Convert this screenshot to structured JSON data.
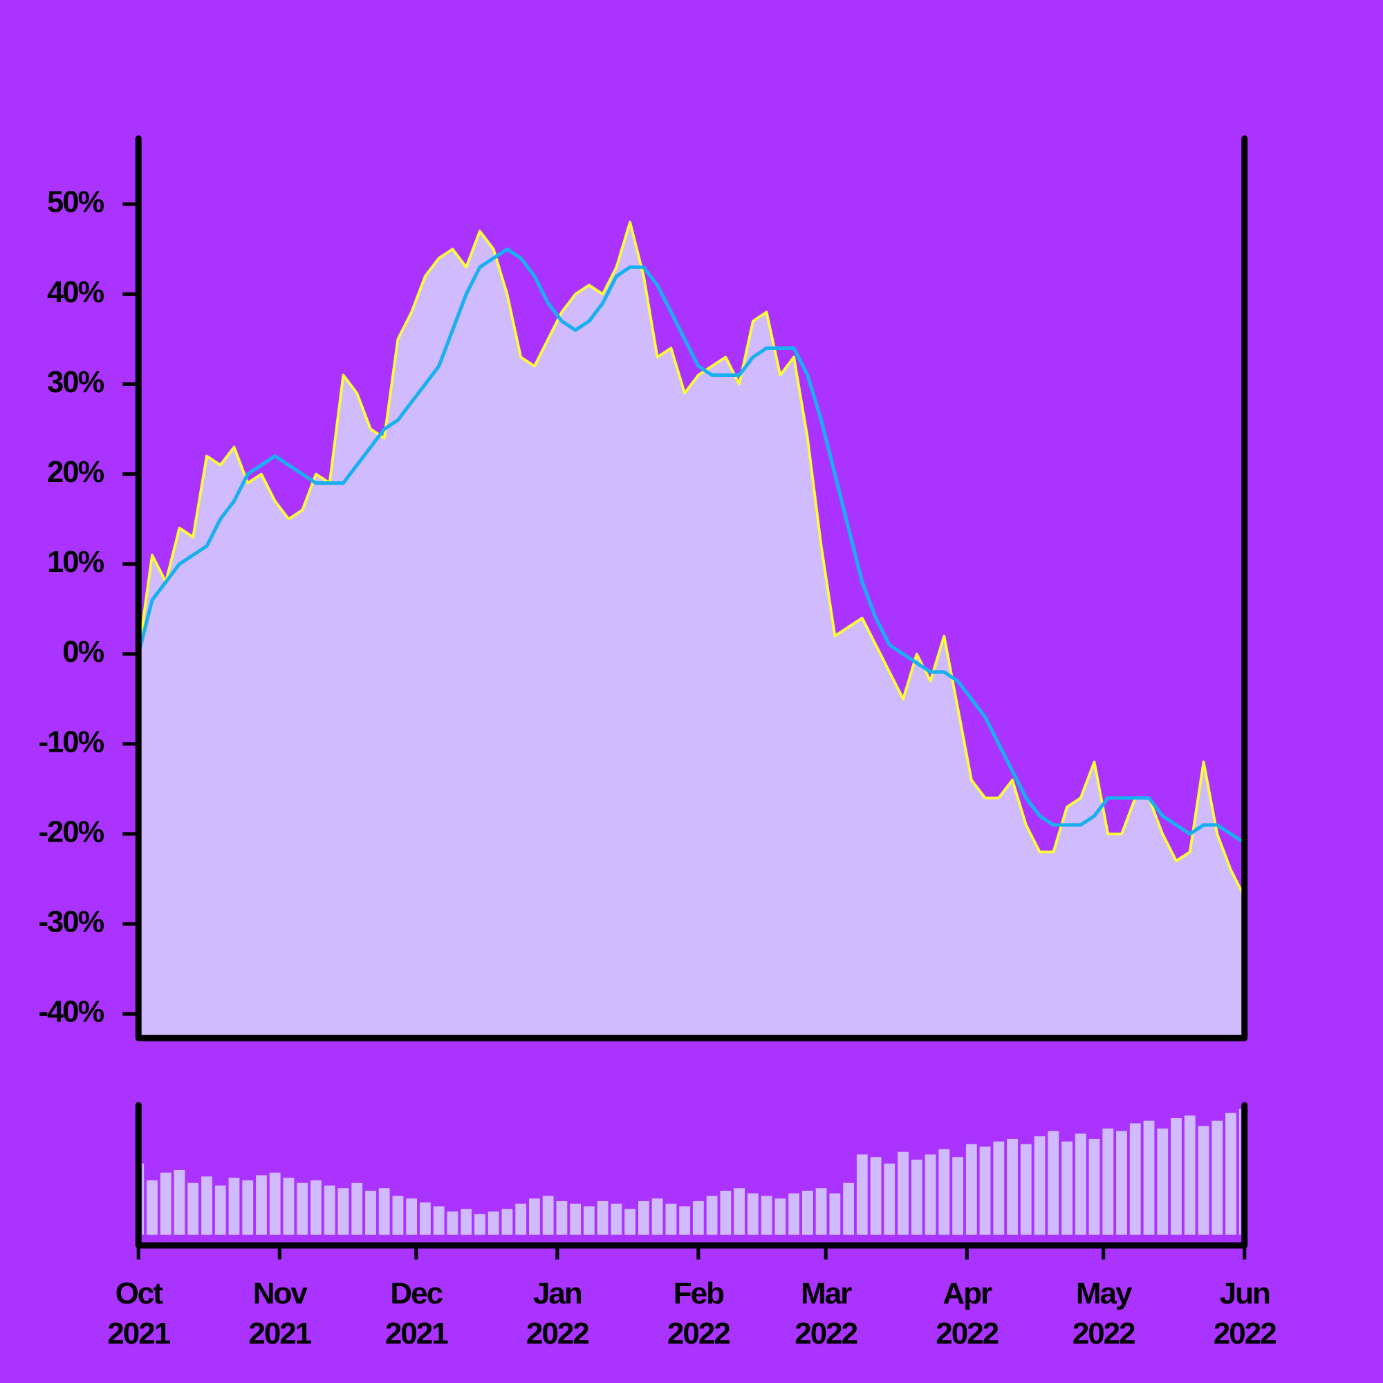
{
  "chart_data": [
    {
      "type": "area",
      "x": [
        0,
        3,
        6,
        9,
        12,
        15,
        18,
        21,
        24,
        27,
        30,
        33,
        36,
        39,
        42,
        45,
        48,
        51,
        54,
        57,
        60,
        63,
        66,
        69,
        72,
        75,
        78,
        81,
        84,
        87,
        90,
        93,
        96,
        99,
        102,
        105,
        108,
        111,
        114,
        117,
        120,
        123,
        126,
        129,
        132,
        135,
        138,
        141,
        144,
        147,
        150,
        153,
        156,
        159,
        162,
        165,
        168,
        171,
        174,
        177,
        180,
        183,
        186,
        189,
        192,
        195,
        198,
        201,
        204,
        207,
        210,
        213,
        216,
        219,
        222,
        225,
        228,
        231,
        234,
        237,
        240,
        243
      ],
      "xlim": [
        0,
        243
      ],
      "ylim": [
        -42.7,
        57.3
      ],
      "yticks": [
        {
          "value": 50,
          "label": "50%"
        },
        {
          "value": 40,
          "label": "40%"
        },
        {
          "value": 30,
          "label": "30%"
        },
        {
          "value": 20,
          "label": "20%"
        },
        {
          "value": 10,
          "label": "10%"
        },
        {
          "value": 0,
          "label": "0%"
        },
        {
          "value": -10,
          "label": "-10%"
        },
        {
          "value": -20,
          "label": "-20%"
        },
        {
          "value": -30,
          "label": "-30%"
        },
        {
          "value": -40,
          "label": "-40%"
        }
      ],
      "series": [
        {
          "kind": "area",
          "color": "#ffff33",
          "fill": "#d0bbff",
          "values": [
            0,
            11,
            8,
            14,
            13,
            22,
            21,
            23,
            19,
            20,
            17,
            15,
            16,
            20,
            19,
            31,
            29,
            25,
            24,
            35,
            38,
            42,
            44,
            45,
            43,
            47,
            45,
            40,
            33,
            32,
            35,
            38,
            40,
            41,
            40,
            43,
            48,
            42,
            33,
            34,
            29,
            31,
            32,
            33,
            30,
            37,
            38,
            31,
            33,
            24,
            12,
            2,
            3,
            4,
            1,
            -2,
            -5,
            0,
            -3,
            2,
            -6,
            -14,
            -16,
            -16,
            -14,
            -19,
            -22,
            -22,
            -17,
            -16,
            -12,
            -20,
            -20,
            -16,
            -16,
            -20,
            -23,
            -22,
            -12,
            -20,
            -24,
            -27
          ]
        },
        {
          "kind": "line",
          "color": "#1ab0f0",
          "values": [
            0,
            6,
            8,
            10,
            11,
            12,
            15,
            17,
            20,
            21,
            22,
            21,
            20,
            19,
            19,
            19,
            21,
            23,
            25,
            26,
            28,
            30,
            32,
            36,
            40,
            43,
            44,
            45,
            44,
            42,
            39,
            37,
            36,
            37,
            39,
            42,
            43,
            43,
            41,
            38,
            35,
            32,
            31,
            31,
            31,
            33,
            34,
            34,
            34,
            31,
            26,
            20,
            14,
            8,
            4,
            1,
            0,
            -1,
            -2,
            -2,
            -3,
            -5,
            -7,
            -10,
            -13,
            -16,
            -18,
            -19,
            -19,
            -19,
            -18,
            -16,
            -16,
            -16,
            -16,
            -18,
            -19,
            -20,
            -19,
            -19,
            -20,
            -21
          ]
        }
      ]
    },
    {
      "type": "bar",
      "x": [
        0,
        3,
        6,
        9,
        12,
        15,
        18,
        21,
        24,
        27,
        30,
        33,
        36,
        39,
        42,
        45,
        48,
        51,
        54,
        57,
        60,
        63,
        66,
        69,
        72,
        75,
        78,
        81,
        84,
        87,
        90,
        93,
        96,
        99,
        102,
        105,
        108,
        111,
        114,
        117,
        120,
        123,
        126,
        129,
        132,
        135,
        138,
        141,
        144,
        147,
        150,
        153,
        156,
        159,
        162,
        165,
        168,
        171,
        174,
        177,
        180,
        183,
        186,
        189,
        192,
        195,
        198,
        201,
        204,
        207,
        210,
        213,
        216,
        219,
        222,
        225,
        228,
        231,
        234,
        237,
        240,
        243
      ],
      "xlim": [
        0,
        243
      ],
      "ylim": [
        0,
        100
      ],
      "color": "#d0bbff",
      "values": [
        55,
        42,
        48,
        50,
        40,
        45,
        38,
        44,
        42,
        46,
        48,
        44,
        40,
        42,
        38,
        36,
        40,
        34,
        36,
        30,
        28,
        25,
        22,
        18,
        20,
        16,
        18,
        20,
        24,
        28,
        30,
        26,
        24,
        22,
        26,
        24,
        20,
        26,
        28,
        24,
        22,
        26,
        30,
        34,
        36,
        32,
        30,
        28,
        32,
        34,
        36,
        32,
        40,
        62,
        60,
        55,
        64,
        58,
        62,
        66,
        60,
        70,
        68,
        72,
        74,
        70,
        76,
        80,
        72,
        78,
        74,
        82,
        80,
        86,
        88,
        82,
        90,
        92,
        84,
        88,
        94,
        97
      ],
      "xticks": [
        {
          "value": 0,
          "label": "Oct\n2021"
        },
        {
          "value": 31,
          "label": "Nov\n2021"
        },
        {
          "value": 61,
          "label": "Dec\n2021"
        },
        {
          "value": 92,
          "label": "Jan\n2022"
        },
        {
          "value": 123,
          "label": "Feb\n2022"
        },
        {
          "value": 151,
          "label": "Mar\n2022"
        },
        {
          "value": 182,
          "label": "Apr\n2022"
        },
        {
          "value": 212,
          "label": "May\n2022"
        },
        {
          "value": 243,
          "label": "Jun\n2022"
        }
      ]
    }
  ]
}
